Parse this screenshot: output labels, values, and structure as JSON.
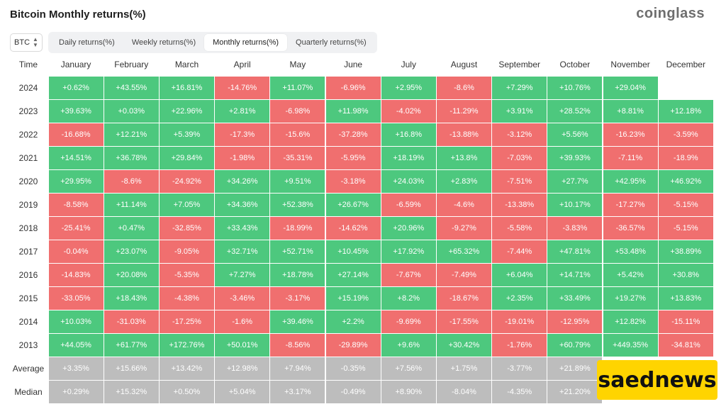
{
  "page_title": "Bitcoin Monthly returns(%)",
  "brand": "coinglass",
  "asset_selector": {
    "value": "BTC"
  },
  "tabs": [
    {
      "label": "Daily returns(%)",
      "active": false
    },
    {
      "label": "Weekly returns(%)",
      "active": false
    },
    {
      "label": "Monthly returns(%)",
      "active": true
    },
    {
      "label": "Quarterly returns(%)",
      "active": false
    }
  ],
  "watermark": "saednews",
  "colors": {
    "positive": "#4dc87e",
    "negative": "#f06f6f",
    "summary": "#bdbdbd"
  },
  "chart_data": {
    "type": "table",
    "corner_label": "Time",
    "columns": [
      "January",
      "February",
      "March",
      "April",
      "May",
      "June",
      "July",
      "August",
      "September",
      "October",
      "November",
      "December"
    ],
    "rows": [
      {
        "label": "2024",
        "values": [
          "+0.62%",
          "+43.55%",
          "+16.81%",
          "-14.76%",
          "+11.07%",
          "-6.96%",
          "+2.95%",
          "-8.6%",
          "+7.29%",
          "+10.76%",
          "+29.04%",
          ""
        ]
      },
      {
        "label": "2023",
        "values": [
          "+39.63%",
          "+0.03%",
          "+22.96%",
          "+2.81%",
          "-6.98%",
          "+11.98%",
          "-4.02%",
          "-11.29%",
          "+3.91%",
          "+28.52%",
          "+8.81%",
          "+12.18%"
        ]
      },
      {
        "label": "2022",
        "values": [
          "-16.68%",
          "+12.21%",
          "+5.39%",
          "-17.3%",
          "-15.6%",
          "-37.28%",
          "+16.8%",
          "-13.88%",
          "-3.12%",
          "+5.56%",
          "-16.23%",
          "-3.59%"
        ]
      },
      {
        "label": "2021",
        "values": [
          "+14.51%",
          "+36.78%",
          "+29.84%",
          "-1.98%",
          "-35.31%",
          "-5.95%",
          "+18.19%",
          "+13.8%",
          "-7.03%",
          "+39.93%",
          "-7.11%",
          "-18.9%"
        ]
      },
      {
        "label": "2020",
        "values": [
          "+29.95%",
          "-8.6%",
          "-24.92%",
          "+34.26%",
          "+9.51%",
          "-3.18%",
          "+24.03%",
          "+2.83%",
          "-7.51%",
          "+27.7%",
          "+42.95%",
          "+46.92%"
        ]
      },
      {
        "label": "2019",
        "values": [
          "-8.58%",
          "+11.14%",
          "+7.05%",
          "+34.36%",
          "+52.38%",
          "+26.67%",
          "-6.59%",
          "-4.6%",
          "-13.38%",
          "+10.17%",
          "-17.27%",
          "-5.15%"
        ]
      },
      {
        "label": "2018",
        "values": [
          "-25.41%",
          "+0.47%",
          "-32.85%",
          "+33.43%",
          "-18.99%",
          "-14.62%",
          "+20.96%",
          "-9.27%",
          "-5.58%",
          "-3.83%",
          "-36.57%",
          "-5.15%"
        ]
      },
      {
        "label": "2017",
        "values": [
          "-0.04%",
          "+23.07%",
          "-9.05%",
          "+32.71%",
          "+52.71%",
          "+10.45%",
          "+17.92%",
          "+65.32%",
          "-7.44%",
          "+47.81%",
          "+53.48%",
          "+38.89%"
        ]
      },
      {
        "label": "2016",
        "values": [
          "-14.83%",
          "+20.08%",
          "-5.35%",
          "+7.27%",
          "+18.78%",
          "+27.14%",
          "-7.67%",
          "-7.49%",
          "+6.04%",
          "+14.71%",
          "+5.42%",
          "+30.8%"
        ]
      },
      {
        "label": "2015",
        "values": [
          "-33.05%",
          "+18.43%",
          "-4.38%",
          "-3.46%",
          "-3.17%",
          "+15.19%",
          "+8.2%",
          "-18.67%",
          "+2.35%",
          "+33.49%",
          "+19.27%",
          "+13.83%"
        ]
      },
      {
        "label": "2014",
        "values": [
          "+10.03%",
          "-31.03%",
          "-17.25%",
          "-1.6%",
          "+39.46%",
          "+2.2%",
          "-9.69%",
          "-17.55%",
          "-19.01%",
          "-12.95%",
          "+12.82%",
          "-15.11%"
        ]
      },
      {
        "label": "2013",
        "values": [
          "+44.05%",
          "+61.77%",
          "+172.76%",
          "+50.01%",
          "-8.56%",
          "-29.89%",
          "+9.6%",
          "+30.42%",
          "-1.76%",
          "+60.79%",
          "+449.35%",
          "-34.81%"
        ]
      },
      {
        "label": "Average",
        "summary": true,
        "values": [
          "+3.35%",
          "+15.66%",
          "+13.42%",
          "+12.98%",
          "+7.94%",
          "-0.35%",
          "+7.56%",
          "+1.75%",
          "-3.77%",
          "+21.89%",
          "",
          ""
        ]
      },
      {
        "label": "Median",
        "summary": true,
        "values": [
          "+0.29%",
          "+15.32%",
          "+0.50%",
          "+5.04%",
          "+3.17%",
          "-0.49%",
          "+8.90%",
          "-8.04%",
          "-4.35%",
          "+21.20%",
          "",
          ""
        ]
      }
    ]
  }
}
